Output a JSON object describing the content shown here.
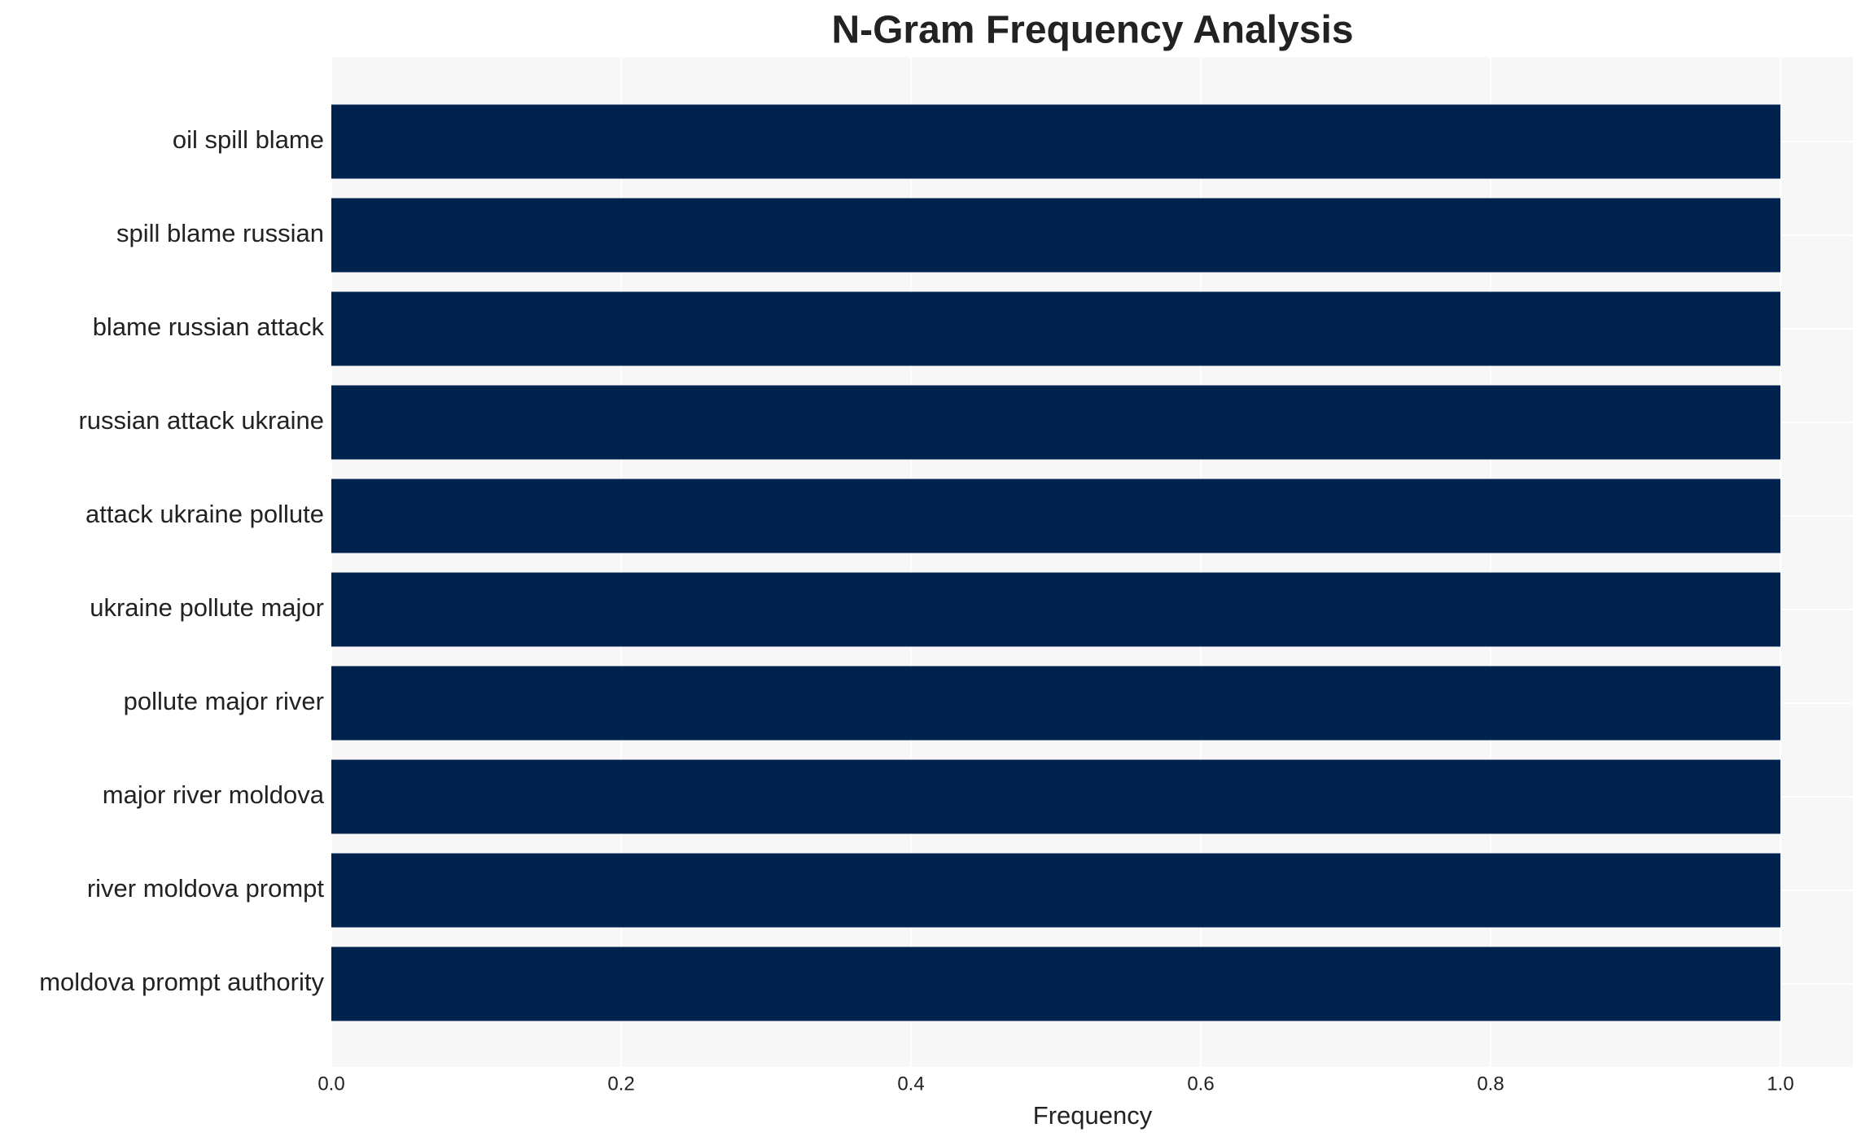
{
  "chart_data": {
    "type": "barh",
    "title": "N-Gram Frequency Analysis",
    "xlabel": "Frequency",
    "categories": [
      "oil spill blame",
      "spill blame russian",
      "blame russian attack",
      "russian attack ukraine",
      "attack ukraine pollute",
      "ukraine pollute major",
      "pollute major river",
      "major river moldova",
      "river moldova prompt",
      "moldova prompt authority"
    ],
    "values": [
      1,
      1,
      1,
      1,
      1,
      1,
      1,
      1,
      1,
      1
    ],
    "color": "#00224e",
    "xlim": [
      0,
      1.05
    ],
    "xticks": [
      {
        "value": 0,
        "label": "0.0"
      },
      {
        "value": 0.2,
        "label": "0.2"
      },
      {
        "value": 0.4,
        "label": "0.4"
      },
      {
        "value": 0.6,
        "label": "0.6"
      },
      {
        "value": 0.8,
        "label": "0.8"
      },
      {
        "value": 1,
        "label": "1.0"
      }
    ],
    "grid": true
  }
}
